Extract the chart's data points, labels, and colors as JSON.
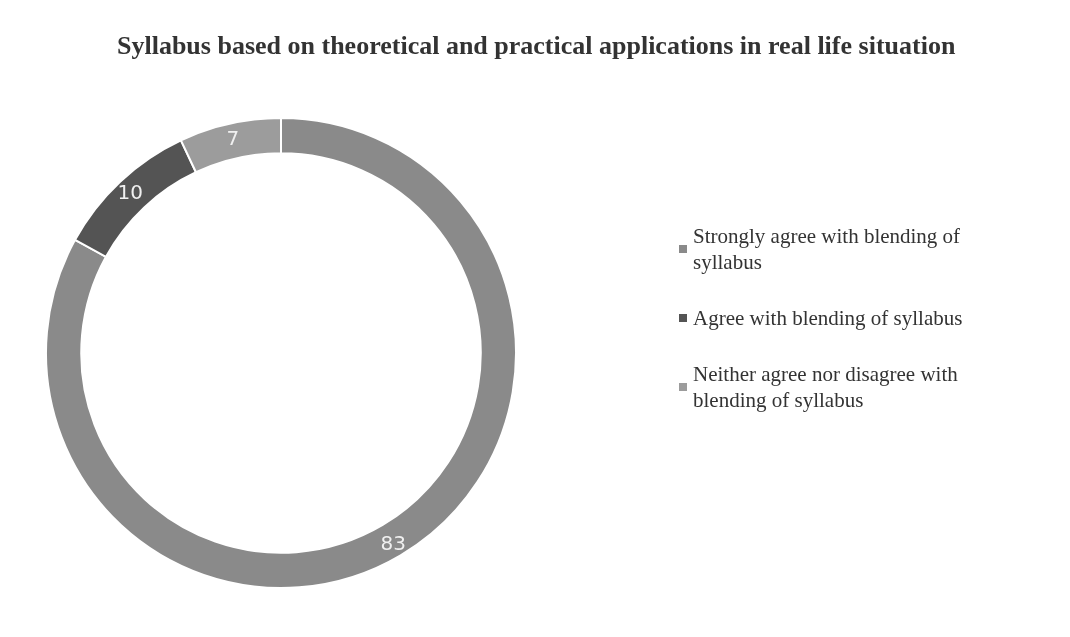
{
  "chart_data": {
    "type": "donut",
    "title": "Syllabus based on theoretical and practical applications in real life situation",
    "categories": [
      "Strongly agree with blending of syllabus",
      "Agree with blending of syllabus",
      "Neither agree nor disagree with blending of syllabus"
    ],
    "values": [
      83,
      10,
      7
    ],
    "colors": [
      "#8a8a8a",
      "#545454",
      "#9c9c9c"
    ],
    "data_labels": true,
    "legend": "right"
  }
}
